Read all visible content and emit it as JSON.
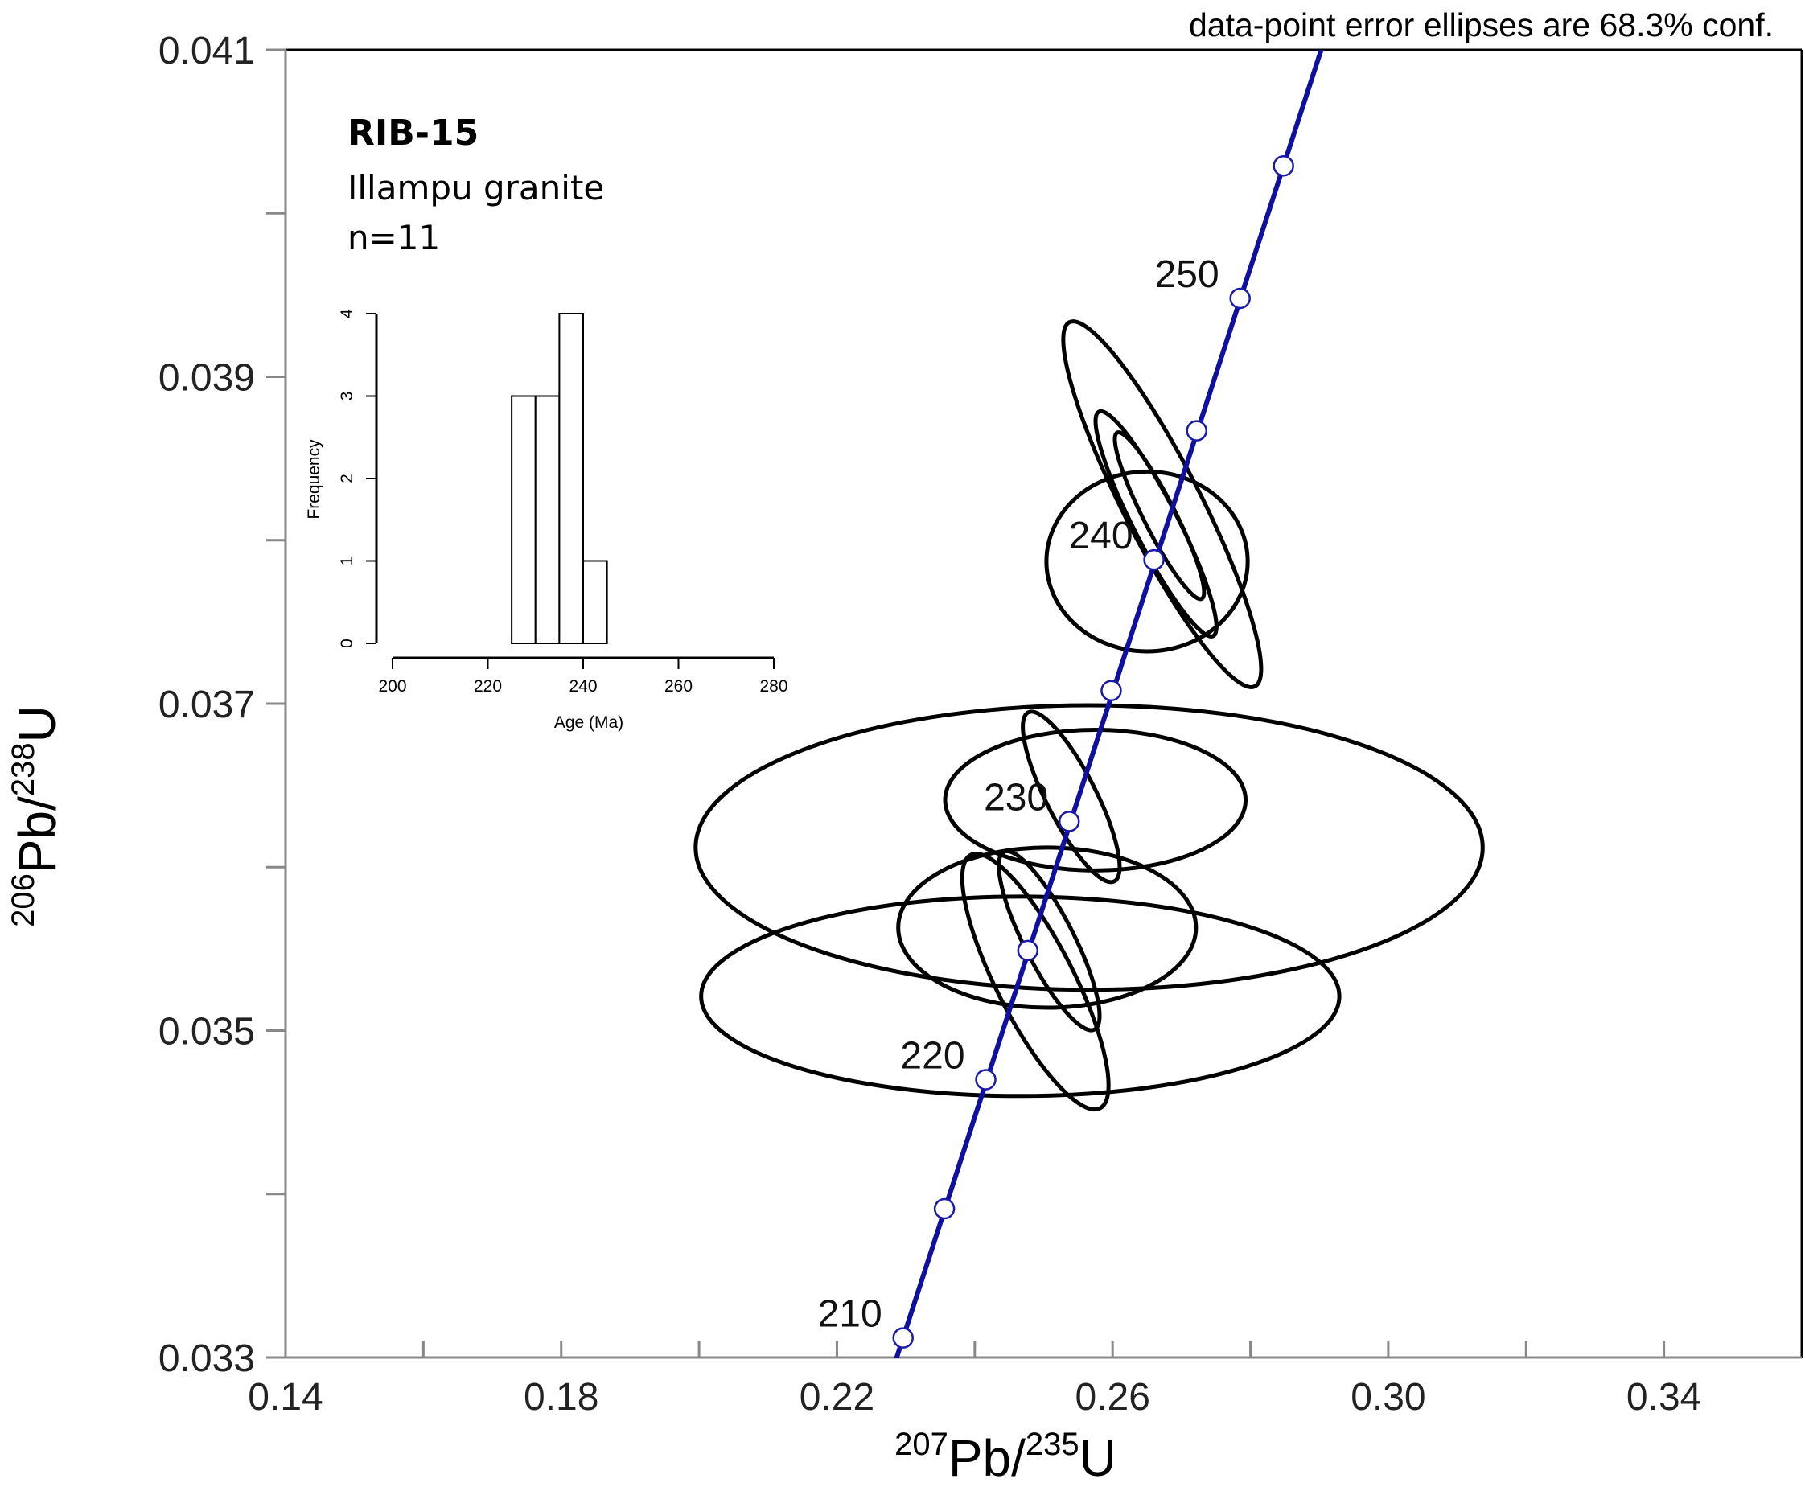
{
  "chart_data": {
    "type": "concordia",
    "note": "data-point error ellipses are 68.3% conf.",
    "xlabel": {
      "superscript1": "207",
      "base1": "Pb/",
      "superscript2": "235",
      "base2": "U"
    },
    "ylabel": {
      "superscript1": "206",
      "base1": "Pb/",
      "superscript2": "238",
      "base2": "U"
    },
    "xlim": [
      0.14,
      0.36
    ],
    "ylim": [
      0.033,
      0.041
    ],
    "x_ticks": [
      0.14,
      0.16,
      0.18,
      0.2,
      0.22,
      0.24,
      0.26,
      0.28,
      0.3,
      0.32,
      0.34
    ],
    "x_tick_labels": [
      "0.14",
      "",
      "0.18",
      "",
      "0.22",
      "",
      "0.26",
      "",
      "0.30",
      "",
      "0.34"
    ],
    "y_ticks": [
      0.033,
      0.034,
      0.035,
      0.036,
      0.037,
      0.038,
      0.039,
      0.04,
      0.041
    ],
    "y_tick_labels": [
      "0.033",
      "",
      "0.035",
      "",
      "0.037",
      "",
      "0.039",
      "",
      "0.041"
    ],
    "concordia_line_color": "#1010a0",
    "concordia_points": [
      {
        "age": 210,
        "x": 0.2296,
        "y": 0.03312,
        "label": "210"
      },
      {
        "age": 215,
        "x": 0.2356,
        "y": 0.03391,
        "label": ""
      },
      {
        "age": 220,
        "x": 0.2416,
        "y": 0.0347,
        "label": "220"
      },
      {
        "age": 225,
        "x": 0.2477,
        "y": 0.03549,
        "label": ""
      },
      {
        "age": 230,
        "x": 0.2537,
        "y": 0.03628,
        "label": "230"
      },
      {
        "age": 235,
        "x": 0.2598,
        "y": 0.03708,
        "label": ""
      },
      {
        "age": 240,
        "x": 0.266,
        "y": 0.03788,
        "label": "240"
      },
      {
        "age": 245,
        "x": 0.2722,
        "y": 0.03867,
        "label": ""
      },
      {
        "age": 250,
        "x": 0.2785,
        "y": 0.03948,
        "label": "250"
      },
      {
        "age": 255,
        "x": 0.2848,
        "y": 0.04029,
        "label": ""
      }
    ],
    "ellipses": [
      {
        "cx": 0.2466,
        "cy": 0.03521,
        "rx": 0.0463,
        "ry": 0.00061,
        "angle": 0
      },
      {
        "cx": 0.2566,
        "cy": 0.03612,
        "rx": 0.0571,
        "ry": 0.00087,
        "angle": 0
      },
      {
        "cx": 0.2505,
        "cy": 0.03563,
        "rx": 0.0216,
        "ry": 0.00049,
        "angle": 0
      },
      {
        "cx": 0.2575,
        "cy": 0.03641,
        "rx": 0.0218,
        "ry": 0.00043,
        "angle": 0
      },
      {
        "cx": 0.265,
        "cy": 0.03787,
        "rx": 0.0146,
        "ry": 0.00055,
        "angle": 0
      },
      {
        "cx": 0.2488,
        "cy": 0.0353,
        "rx": 0.0056,
        "ry": 0.00087,
        "angle": -27
      },
      {
        "cx": 0.2508,
        "cy": 0.03555,
        "rx": 0.0036,
        "ry": 0.00061,
        "angle": -27
      },
      {
        "cx": 0.254,
        "cy": 0.03643,
        "rx": 0.0036,
        "ry": 0.00058,
        "angle": -27
      },
      {
        "cx": 0.2672,
        "cy": 0.03822,
        "rx": 0.0056,
        "ry": 0.00125,
        "angle": -27
      },
      {
        "cx": 0.2663,
        "cy": 0.0381,
        "rx": 0.0032,
        "ry": 0.00077,
        "angle": -27
      },
      {
        "cx": 0.2668,
        "cy": 0.03815,
        "rx": 0.0023,
        "ry": 0.00057,
        "angle": -27
      }
    ]
  },
  "sample": {
    "title": "RIB-15",
    "rock": "Illampu granite",
    "count": "n=11"
  },
  "inset_histogram": {
    "type": "bar",
    "xlabel": "Age (Ma)",
    "ylabel": "Frequency",
    "xlim": [
      200,
      280
    ],
    "ylim": [
      0,
      4
    ],
    "x_ticks": [
      200,
      220,
      240,
      260,
      280
    ],
    "y_ticks": [
      0,
      1,
      2,
      3,
      4
    ],
    "bins": [
      {
        "start": 225,
        "end": 230,
        "count": 3
      },
      {
        "start": 230,
        "end": 235,
        "count": 3
      },
      {
        "start": 235,
        "end": 240,
        "count": 4
      },
      {
        "start": 240,
        "end": 245,
        "count": 1
      }
    ]
  }
}
